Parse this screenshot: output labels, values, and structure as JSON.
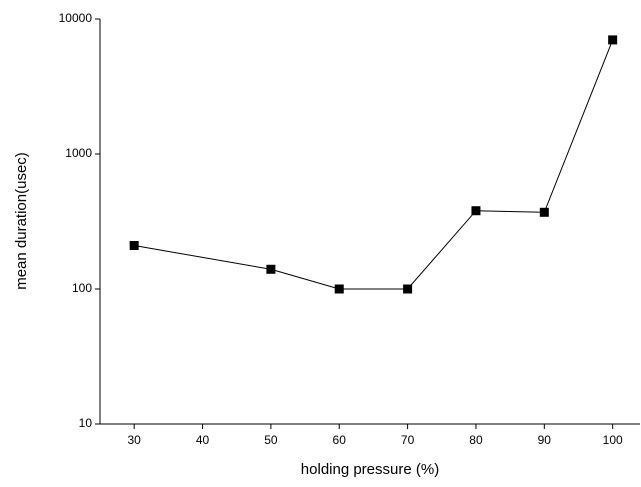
{
  "chart_data": {
    "type": "line",
    "x_label": "holding pressure (%)",
    "y_label": "mean duration(usec)",
    "x": [
      30,
      50,
      60,
      70,
      80,
      90,
      100
    ],
    "series": [
      {
        "color": "#000000",
        "values": [
          210,
          140,
          100,
          100,
          380,
          370,
          7000
        ]
      }
    ],
    "xlim": [
      25,
      104
    ],
    "xticks": [
      30,
      40,
      50,
      60,
      70,
      80,
      90,
      100
    ],
    "ylim": [
      10,
      10000
    ],
    "yticks": [
      10,
      100,
      1000,
      10000
    ],
    "y_log": true
  }
}
